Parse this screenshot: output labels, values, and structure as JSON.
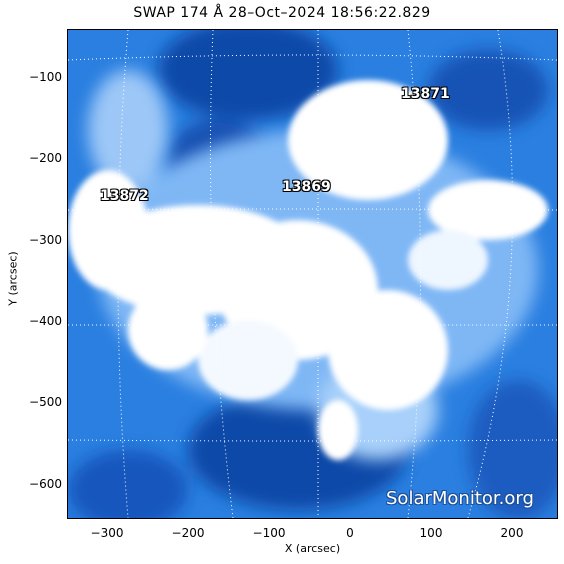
{
  "title": "SWAP 174 Å 28–Oct–2024 18:56:22.829",
  "axes": {
    "xlabel": "X (arcsec)",
    "ylabel": "Y (arcsec)",
    "x_ticks": [
      "−300",
      "−200",
      "−100",
      "0",
      "100",
      "200"
    ],
    "y_ticks": [
      "−100",
      "−200",
      "−300",
      "−400",
      "−500",
      "−600"
    ]
  },
  "regions": [
    {
      "id": "13871",
      "label": "13871"
    },
    {
      "id": "13872",
      "label": "13872"
    },
    {
      "id": "13869",
      "label": "13869"
    }
  ],
  "watermark": "SolarMonitor.org",
  "colors": {
    "base_blue": "#2a7fe0",
    "dark_blue": "#0b3f9a",
    "bright": "#ffffff"
  }
}
